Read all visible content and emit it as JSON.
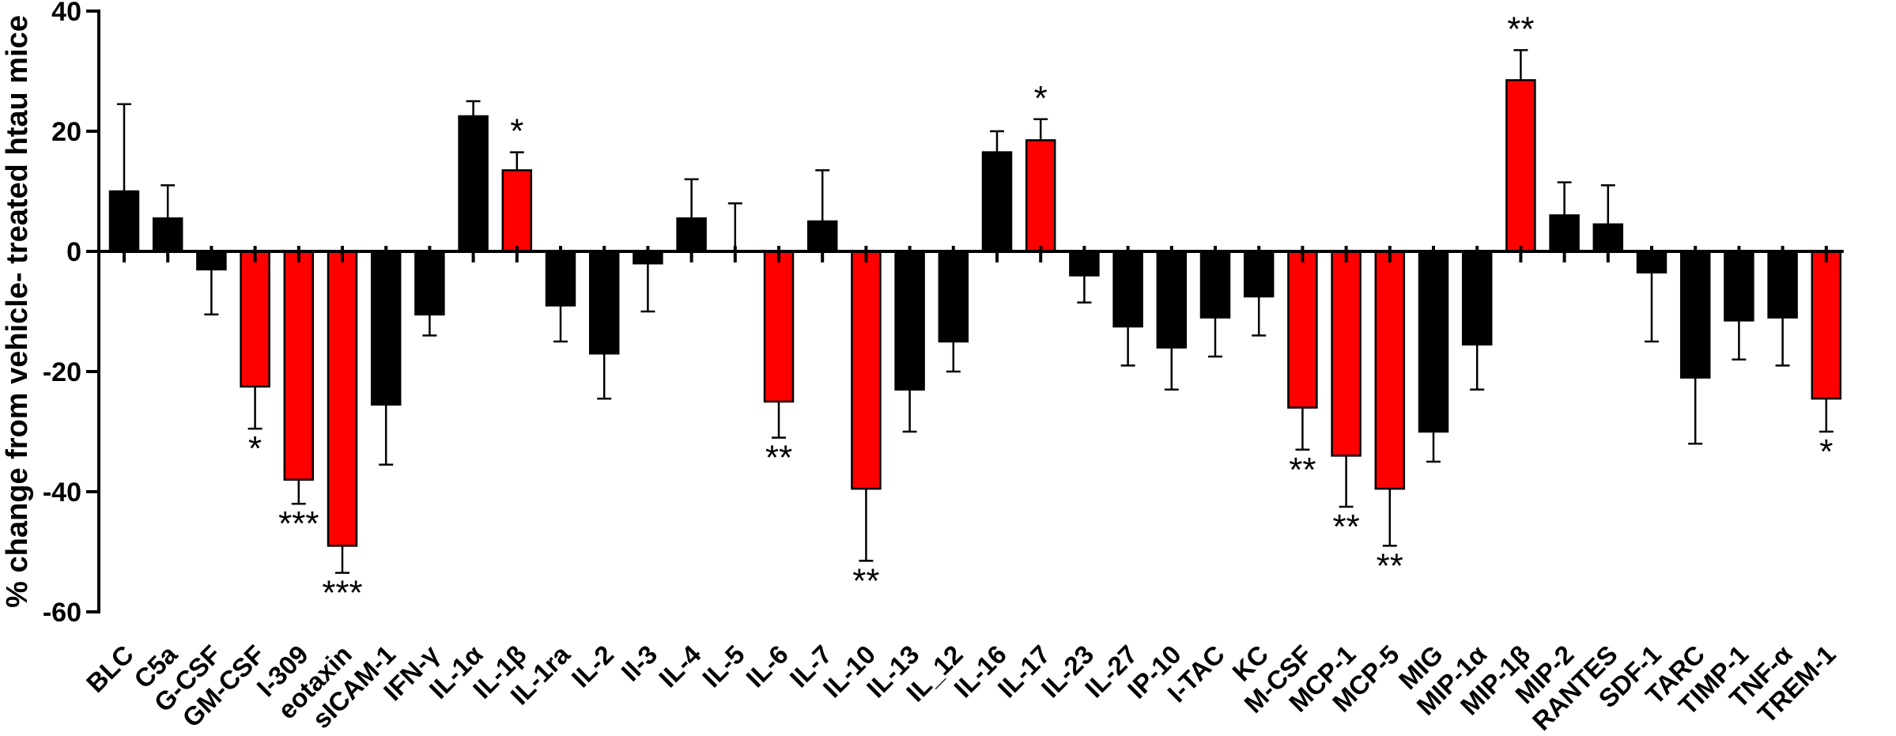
{
  "chart_data": {
    "type": "bar",
    "ylabel": "% change from vehicle- treated htau mice",
    "xlabel": "",
    "ylim": [
      -60,
      40
    ],
    "yticks": [
      -60,
      -40,
      -20,
      0,
      20,
      40
    ],
    "grid": false,
    "legend": "none",
    "colors": {
      "significant": "#ff0000",
      "nonsignificant": "#000000"
    },
    "categories": [
      "BLC",
      "C5a",
      "G-CSF",
      "GM-CSF",
      "I-309",
      "eotaxin",
      "sICAM-1",
      "IFN-γ",
      "IL-1α",
      "IL-1β",
      "IL-1ra",
      "IL-2",
      "Il-3",
      "IL-4",
      "IL-5",
      "IL-6",
      "IL-7",
      "IL-10",
      "IL-13",
      "IL_12",
      "IL-16",
      "IL-17",
      "IL-23",
      "IL-27",
      "IP-10",
      "I-TAC",
      "KC",
      "M-CSF",
      "MCP-1",
      "MCP-5",
      "MIG",
      "MIP-1α",
      "MIP-1β",
      "MIP-2",
      "RANTES",
      "SDF-1",
      "TARC",
      "TIMP-1",
      "TNF-α",
      "TREM-1"
    ],
    "values": [
      10,
      5.5,
      -3,
      -22.5,
      -38,
      -49,
      -25.5,
      -10.5,
      22.5,
      13.5,
      -9,
      -17,
      -2,
      5.5,
      0,
      -25,
      5,
      -39.5,
      -23,
      -15,
      16.5,
      18.5,
      -4,
      -12.5,
      -16,
      -11,
      -7.5,
      -26,
      -34,
      -39.5,
      -30,
      -15.5,
      28.5,
      6,
      4.5,
      -3.5,
      -21,
      -11.5,
      -11,
      -24.5
    ],
    "errors": [
      14.5,
      5.5,
      7.5,
      7,
      4,
      4.5,
      10,
      3.5,
      2.5,
      3,
      6,
      7.5,
      8,
      6.5,
      8,
      6,
      8.5,
      12,
      7,
      5,
      3.5,
      3.5,
      4.5,
      6.5,
      7,
      6.5,
      6.5,
      7,
      8.5,
      9.5,
      5,
      7.5,
      5,
      5.5,
      6.5,
      11.5,
      11,
      6.5,
      8,
      5.5
    ],
    "significance": [
      "",
      "",
      "",
      "*",
      "***",
      "***",
      "",
      "",
      "",
      "*",
      "",
      "",
      "",
      "",
      "",
      "**",
      "",
      "**",
      "",
      "",
      "",
      "*",
      "",
      "",
      "",
      "",
      "",
      "**",
      "**",
      "**",
      "",
      "",
      "**",
      "",
      "",
      "",
      "",
      "",
      "",
      "*"
    ]
  }
}
